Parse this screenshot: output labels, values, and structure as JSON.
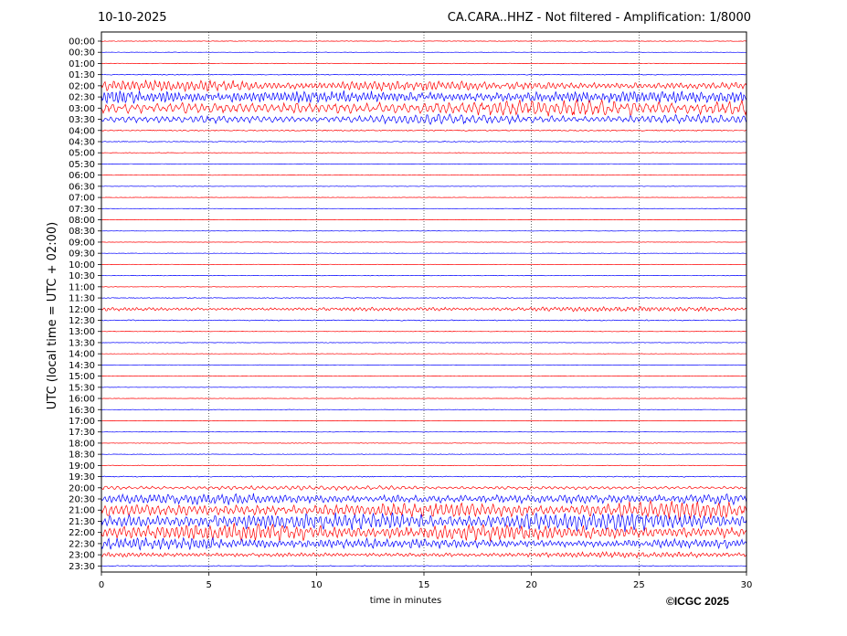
{
  "header": {
    "date": "10-10-2025",
    "title": "CA.CARA..HHZ - Not filtered - Amplification: 1/8000"
  },
  "copyright": "©ICGC 2025",
  "colors": {
    "trace_a": "#ff0000",
    "trace_b": "#0000ff",
    "grid": "#000000"
  },
  "chart_data": {
    "type": "line",
    "xlabel": "time in minutes",
    "ylabel": "UTC (local time = UTC + 02:00)",
    "xlim": [
      0,
      30
    ],
    "x_ticks": [
      "0",
      "5",
      "10",
      "15",
      "20",
      "25",
      "30"
    ],
    "grid": "vertical dotted at each x tick",
    "row_labels": [
      "00:00",
      "00:30",
      "01:00",
      "01:30",
      "02:00",
      "02:30",
      "03:00",
      "03:30",
      "04:00",
      "04:30",
      "05:00",
      "05:30",
      "06:00",
      "06:30",
      "07:00",
      "07:30",
      "08:00",
      "08:30",
      "09:00",
      "09:30",
      "10:00",
      "10:30",
      "11:00",
      "11:30",
      "12:00",
      "12:30",
      "13:00",
      "13:30",
      "14:00",
      "14:30",
      "15:00",
      "15:30",
      "16:00",
      "16:30",
      "17:00",
      "17:30",
      "18:00",
      "18:30",
      "19:00",
      "19:30",
      "20:00",
      "20:30",
      "21:00",
      "21:30",
      "22:00",
      "22:30",
      "23:00",
      "23:30"
    ],
    "row_colors": [
      "red",
      "blue",
      "red",
      "blue",
      "red",
      "blue",
      "red",
      "blue",
      "red",
      "blue",
      "red",
      "blue",
      "red",
      "blue",
      "red",
      "blue",
      "red",
      "blue",
      "red",
      "blue",
      "red",
      "blue",
      "red",
      "blue",
      "red",
      "blue",
      "red",
      "blue",
      "red",
      "blue",
      "red",
      "blue",
      "red",
      "blue",
      "red",
      "blue",
      "red",
      "blue",
      "red",
      "blue",
      "red",
      "blue",
      "red",
      "blue",
      "red",
      "blue",
      "red",
      "blue"
    ],
    "activity_level": [
      0.6,
      0.4,
      0.6,
      0.8,
      3.5,
      5.0,
      5.5,
      3.0,
      1.2,
      0.9,
      0.5,
      0.5,
      0.4,
      0.4,
      0.4,
      0.4,
      0.4,
      0.4,
      0.4,
      0.4,
      0.4,
      0.5,
      0.5,
      0.8,
      1.6,
      1.0,
      0.5,
      0.5,
      0.4,
      0.4,
      0.4,
      0.4,
      0.4,
      0.4,
      0.4,
      0.4,
      0.5,
      0.5,
      0.6,
      1.0,
      1.5,
      4.0,
      5.5,
      6.0,
      5.5,
      4.0,
      2.0,
      0.8
    ]
  }
}
